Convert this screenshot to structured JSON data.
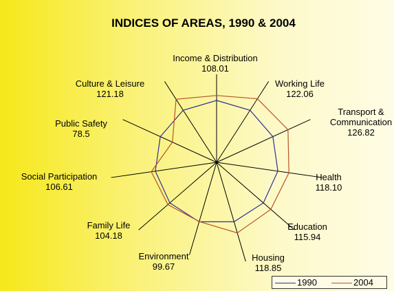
{
  "chart_data": {
    "type": "radar",
    "title": "INDICES OF AREAS, 1990 & 2004",
    "categories": [
      "Income & Distribution",
      "Working Life",
      "Transport & Communication",
      "Health",
      "Education",
      "Housing",
      "Environment",
      "Family Life",
      "Social Participation",
      "Public Safety",
      "Culture & Leisure"
    ],
    "series": [
      {
        "name": "1990",
        "color": "#2e2e96",
        "values": [
          100,
          100,
          100,
          100,
          100,
          100,
          100,
          100,
          100,
          100,
          100
        ]
      },
      {
        "name": "2004",
        "color": "#b5532b",
        "values": [
          108.01,
          122.06,
          126.82,
          118.1,
          115.94,
          118.85,
          99.67,
          104.18,
          106.61,
          78.5,
          121.18
        ],
        "value_labels": [
          "108.01",
          "122.06",
          "126.82",
          "118.10",
          "115.94",
          "118.85",
          "99.67",
          "104.18",
          "106.61",
          "78.5",
          "121.18"
        ]
      }
    ],
    "rlim": [
      0,
      140
    ],
    "legend": "bottom-right"
  }
}
